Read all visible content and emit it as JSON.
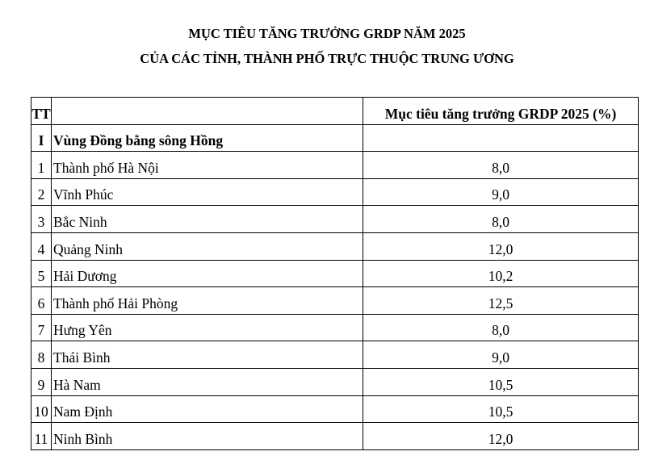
{
  "header": {
    "title": [
      "MỤC TIÊU TĂNG TRƯỞNG GRDP NĂM 2025",
      "CỦA CÁC TỈNH, THÀNH PHỐ TRỰC THUỘC TRUNG ƯƠNG"
    ]
  },
  "table": {
    "columns": [
      "TT",
      "Mục tiêu tăng trưởng GRDP 2025 (%)"
    ],
    "rows": [
      [
        "I",
        "Vùng Đồng bằng sông Hồng"
      ],
      [
        "1",
        "Thành phố Hà Nội",
        "8,0"
      ],
      [
        "2",
        "Vĩnh Phúc",
        "9,0"
      ],
      [
        "3",
        "Bắc Ninh",
        "8,0"
      ],
      [
        "4",
        "Quảng Ninh",
        "12,0"
      ],
      [
        "5",
        "Hải Dương",
        "10,2"
      ],
      [
        "6",
        "Thành phố Hải Phòng",
        "12,5"
      ],
      [
        "7",
        "Hưng Yên",
        "8,0"
      ],
      [
        "8",
        "Thái Bình",
        "9,0"
      ],
      [
        "9",
        "Hà Nam",
        "10,5"
      ],
      [
        "10",
        "Nam Định",
        "10,5"
      ],
      [
        "11",
        "Ninh Bình",
        "12,0"
      ]
    ]
  }
}
